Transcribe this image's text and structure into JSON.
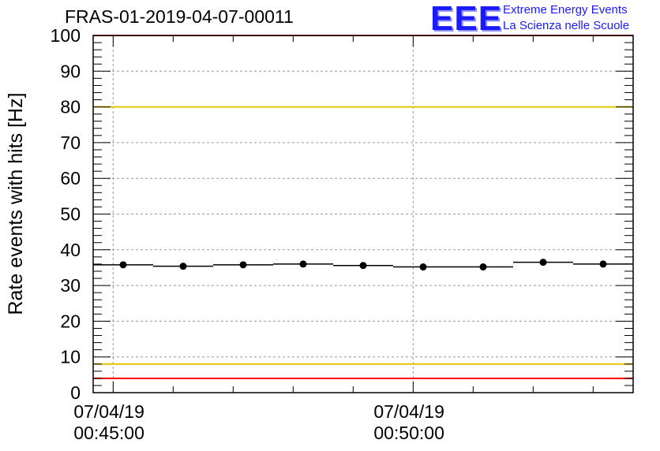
{
  "header": {
    "title": "FRAS-01-2019-04-07-00011",
    "logo_mark": "EEE",
    "logo_line1": "Extreme Energy Events",
    "logo_line2": "La Scienza nelle Scuole"
  },
  "colors": {
    "points": "#000000",
    "limit_red": "#ff0000",
    "limit_yellow": "#e6c400",
    "grid": "#9a9a9a",
    "logo": "#1a1aff"
  },
  "chart_data": {
    "type": "scatter",
    "title": "FRAS-01-2019-04-07-00011",
    "ylabel": "Rate events with hits [Hz]",
    "xlabel": "",
    "ylim": [
      0,
      100
    ],
    "yticks": [
      "0",
      "10",
      "20",
      "30",
      "40",
      "50",
      "60",
      "70",
      "80",
      "90",
      "100"
    ],
    "xticks": [
      {
        "date": "07/04/19",
        "time": "00:45:00"
      },
      {
        "date": "07/04/19",
        "time": "00:50:00"
      }
    ],
    "bins": [
      {
        "start": "00:44:40",
        "end": "00:45:40",
        "center": "00:45:10",
        "value": 35.8
      },
      {
        "start": "00:45:40",
        "end": "00:46:40",
        "center": "00:46:10",
        "value": 35.4
      },
      {
        "start": "00:46:40",
        "end": "00:47:40",
        "center": "00:47:10",
        "value": 35.8
      },
      {
        "start": "00:47:40",
        "end": "00:48:40",
        "center": "00:48:10",
        "value": 36.0
      },
      {
        "start": "00:48:40",
        "end": "00:49:40",
        "center": "00:49:10",
        "value": 35.6
      },
      {
        "start": "00:49:40",
        "end": "00:50:40",
        "center": "00:50:10",
        "value": 35.2
      },
      {
        "start": "00:50:40",
        "end": "00:51:40",
        "center": "00:51:10",
        "value": 35.2
      },
      {
        "start": "00:51:40",
        "end": "00:52:40",
        "center": "00:52:10",
        "value": 36.5
      },
      {
        "start": "00:52:40",
        "end": "00:53:40",
        "center": "00:53:10",
        "value": 36.0
      }
    ],
    "limits": [
      {
        "value": 100,
        "color": "#ff0000"
      },
      {
        "value": 80,
        "color": "#e6c400"
      },
      {
        "value": 8,
        "color": "#e6c400"
      },
      {
        "value": 4,
        "color": "#ff0000"
      }
    ],
    "grid": true
  }
}
